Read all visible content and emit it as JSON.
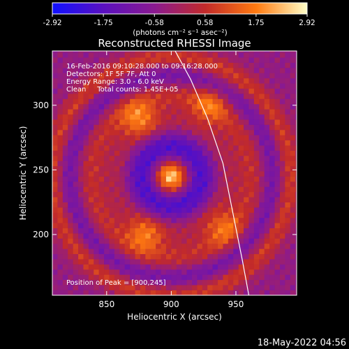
{
  "chart_data": {
    "type": "heatmap",
    "title": "Reconstructed RHESSI Image",
    "xlabel": "Heliocentric X (arcsec)",
    "ylabel": "Heliocentric Y (arcsec)",
    "xlim": [
      808,
      997
    ],
    "ylim": [
      153,
      342
    ],
    "x_ticks": [
      850,
      900,
      950
    ],
    "y_ticks": [
      200,
      250,
      300
    ],
    "colorbar": {
      "ticks": [
        "-2.92",
        "-1.75",
        "-0.58",
        "0.58",
        "1.75",
        "2.92"
      ],
      "range": [
        -2.92,
        2.92
      ],
      "unit_label": "(photons cm⁻² s⁻¹ asec⁻²)",
      "colors": [
        "#1010ff",
        "#5a10c0",
        "#8a1a90",
        "#c22a2a",
        "#ff7a10",
        "#ffffc8"
      ]
    },
    "annotations": [
      "16-Feb-2016 09:10:28.000 to 09:16:28.000",
      "Detectors: 1F 5F 7F, Att 0",
      "Energy Range: 3.0 - 6.0 keV",
      "Clean     Total counts: 1.45E+05"
    ],
    "peak_label": "Position of Peak = [900,245]",
    "peak": {
      "x": 900,
      "y": 245,
      "value": 2.92
    },
    "bright_sources": [
      {
        "x": 900,
        "y": 245,
        "value": 2.9
      },
      {
        "x": 875,
        "y": 290,
        "value": 2.0
      },
      {
        "x": 930,
        "y": 300,
        "value": 1.7
      },
      {
        "x": 880,
        "y": 200,
        "value": 1.9
      },
      {
        "x": 940,
        "y": 205,
        "value": 1.6
      }
    ],
    "limb_points": [
      [
        903,
        342
      ],
      [
        915,
        320
      ],
      [
        928,
        290
      ],
      [
        940,
        255
      ],
      [
        948,
        215
      ],
      [
        955,
        180
      ],
      [
        960,
        153
      ]
    ],
    "timestamp": "18-May-2022 04:56"
  }
}
